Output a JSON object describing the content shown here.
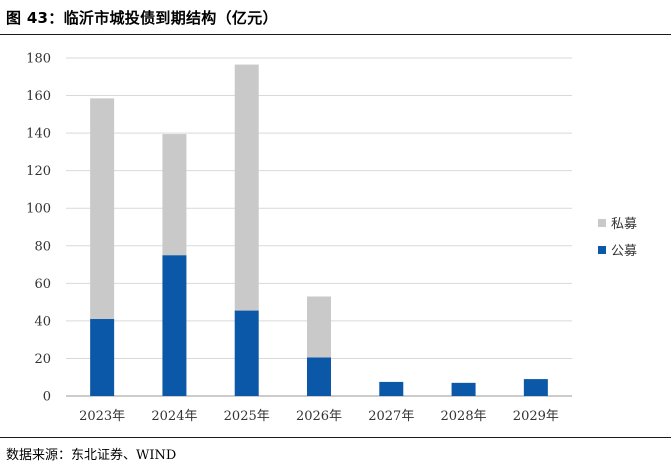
{
  "figure": {
    "title": "图 43：临沂市城投债到期结构（亿元）",
    "source": "数据来源：东北证券、WIND"
  },
  "chart_data": {
    "type": "bar",
    "stacked": true,
    "categories": [
      "2023年",
      "2024年",
      "2025年",
      "2026年",
      "2027年",
      "2028年",
      "2029年"
    ],
    "series": [
      {
        "name": "公募",
        "color": "#0b58a8",
        "values": [
          41,
          75,
          45.5,
          20.5,
          7.5,
          7,
          9
        ]
      },
      {
        "name": "私募",
        "color": "#c9c9c9",
        "values": [
          117.5,
          64.5,
          131,
          32.5,
          0,
          0,
          0
        ]
      }
    ],
    "yticks": [
      0,
      20,
      40,
      60,
      80,
      100,
      120,
      140,
      160,
      180
    ],
    "ylim": [
      0,
      180
    ],
    "grid": true,
    "legend_position": "right",
    "legend_order": [
      "私募",
      "公募"
    ]
  }
}
